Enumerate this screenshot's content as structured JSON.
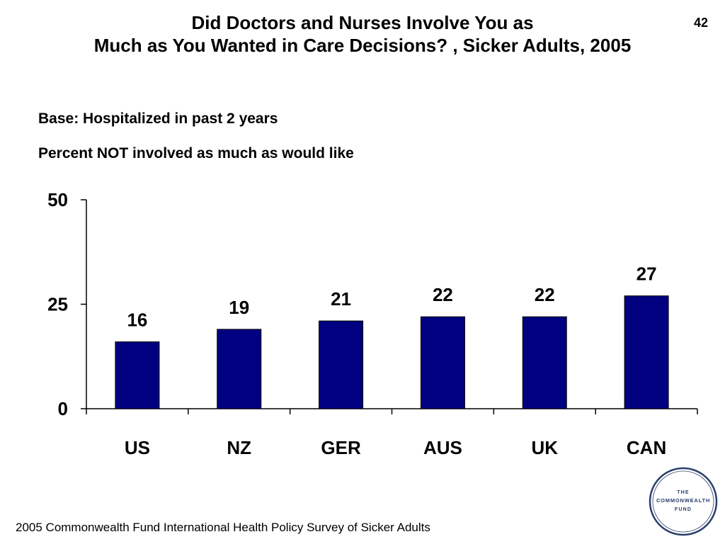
{
  "header": {
    "title_line1": "Did Doctors and Nurses Involve You as",
    "title_line2": "Much as You Wanted in Care Decisions? , Sicker Adults, 2005",
    "page_number": "42"
  },
  "subtitles": {
    "base": "Base: Hospitalized in past 2 years",
    "measure": "Percent NOT involved as much as would like"
  },
  "footer": {
    "source": "2005 Commonwealth Fund International Health Policy Survey of Sicker Adults"
  },
  "logo": {
    "line1": "THE",
    "line2": "COMMONWEALTH",
    "line3": "FUND"
  },
  "chart_data": {
    "type": "bar",
    "categories": [
      "US",
      "NZ",
      "GER",
      "AUS",
      "UK",
      "CAN"
    ],
    "values": [
      16,
      19,
      21,
      22,
      22,
      27
    ],
    "data_labels": [
      "16",
      "19",
      "21",
      "22",
      "22",
      "27"
    ],
    "yticks": [
      0,
      25,
      50
    ],
    "ylim": [
      0,
      50
    ],
    "bar_color": "#000080",
    "grid": false,
    "legend": "none"
  }
}
